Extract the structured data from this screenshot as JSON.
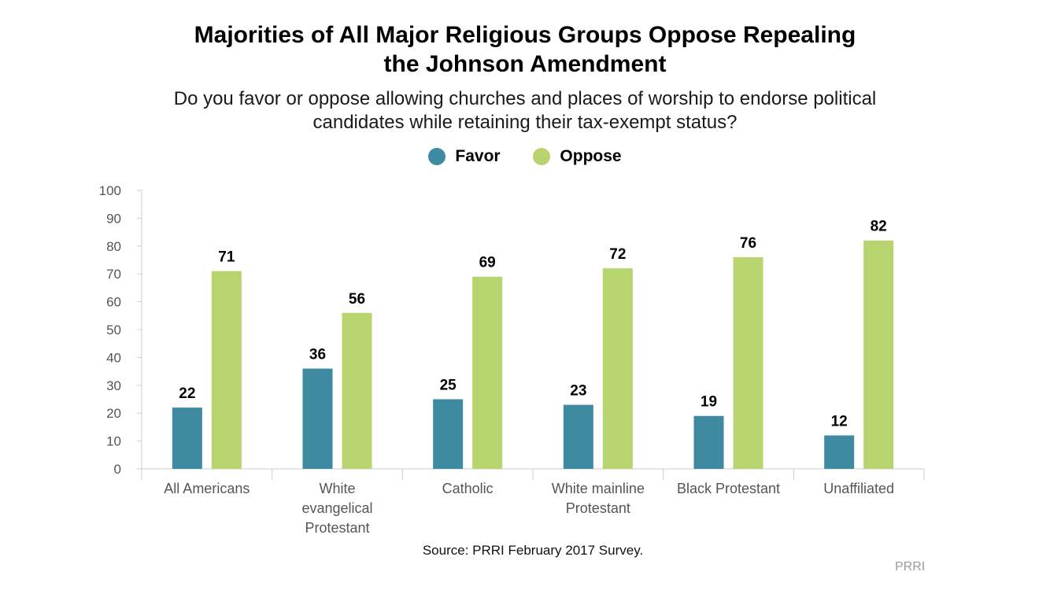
{
  "title_line1": "Majorities of All Major Religious Groups Oppose Repealing",
  "title_line2": "the Johnson Amendment",
  "subtitle_line1": "Do you favor or oppose allowing churches and places of worship to endorse political",
  "subtitle_line2": "candidates while retaining their tax-exempt status?",
  "source": "Source: PRRI February 2017 Survey.",
  "brand": "PRRI",
  "colors": {
    "favor": "#3e8aa0",
    "oppose": "#b8d46e",
    "axis": "#cccccc",
    "tick_text": "#555555"
  },
  "chart_data": {
    "type": "bar",
    "categories": [
      [
        "All Americans"
      ],
      [
        "White",
        "evangelical",
        "Protestant"
      ],
      [
        "Catholic"
      ],
      [
        "White mainline",
        "Protestant"
      ],
      [
        "Black Protestant"
      ],
      [
        "Unaffiliated"
      ]
    ],
    "series": [
      {
        "name": "Favor",
        "values": [
          22,
          36,
          25,
          23,
          19,
          12
        ]
      },
      {
        "name": "Oppose",
        "values": [
          71,
          56,
          69,
          72,
          76,
          82
        ]
      }
    ],
    "ylim": [
      0,
      100
    ],
    "yticks": [
      0,
      10,
      20,
      30,
      40,
      50,
      60,
      70,
      80,
      90,
      100
    ],
    "legend": "top-center",
    "grid": false
  }
}
